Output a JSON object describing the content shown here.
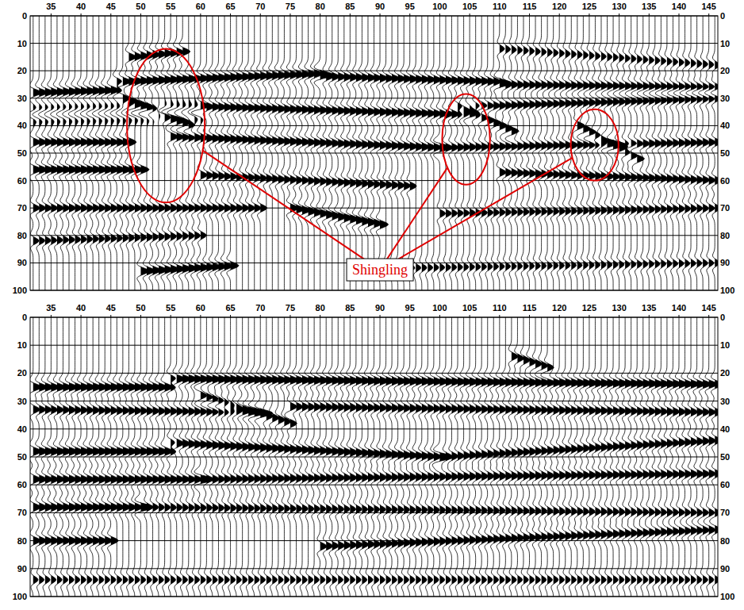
{
  "chart_data": [
    {
      "type": "wiggle",
      "color": "#000000",
      "grid": true,
      "xlim": [
        31.5,
        146.5
      ],
      "ylim": [
        0,
        100
      ],
      "xticks": [
        35,
        40,
        45,
        50,
        55,
        60,
        65,
        70,
        75,
        80,
        85,
        90,
        95,
        100,
        105,
        110,
        115,
        120,
        125,
        130,
        135,
        140,
        145
      ],
      "yticks": [
        0,
        10,
        20,
        30,
        40,
        50,
        60,
        70,
        80,
        90,
        100
      ],
      "trace_range": [
        32,
        146
      ],
      "events": [
        {
          "x": [
            31.5,
            46
          ],
          "t": [
            28,
            27
          ],
          "amplitude": 1
        },
        {
          "x": [
            46,
            80
          ],
          "t": [
            24,
            21
          ],
          "amplitude": 1
        },
        {
          "x": [
            80,
            110
          ],
          "t": [
            22,
            24
          ],
          "amplitude": 0.9
        },
        {
          "x": [
            110,
            146.5
          ],
          "t": [
            25,
            26
          ],
          "amplitude": 0.8
        },
        {
          "x": [
            31.5,
            60
          ],
          "t": [
            36,
            35
          ],
          "amplitude": -0.8
        },
        {
          "x": [
            60,
            105
          ],
          "t": [
            33,
            36
          ],
          "amplitude": 0.9
        },
        {
          "x": [
            105,
            146.5
          ],
          "t": [
            33,
            30
          ],
          "amplitude": 0.8
        },
        {
          "x": [
            31.5,
            48
          ],
          "t": [
            46,
            46
          ],
          "amplitude": 0.9
        },
        {
          "x": [
            55,
            100
          ],
          "t": [
            44,
            48
          ],
          "amplitude": 0.9
        },
        {
          "x": [
            100,
            146.5
          ],
          "t": [
            48,
            46
          ],
          "amplitude": 0.8
        },
        {
          "x": [
            31.5,
            50
          ],
          "t": [
            56,
            56
          ],
          "amplitude": 1
        },
        {
          "x": [
            60,
            95
          ],
          "t": [
            58,
            62
          ],
          "amplitude": 0.8
        },
        {
          "x": [
            110,
            146.5
          ],
          "t": [
            57,
            60
          ],
          "amplitude": 0.8
        },
        {
          "x": [
            31.5,
            70
          ],
          "t": [
            70,
            70
          ],
          "amplitude": 0.8
        },
        {
          "x": [
            75,
            90
          ],
          "t": [
            70,
            76
          ],
          "amplitude": 1
        },
        {
          "x": [
            100,
            146.5
          ],
          "t": [
            72,
            70
          ],
          "amplitude": 0.7
        },
        {
          "x": [
            31.5,
            60
          ],
          "t": [
            82,
            80
          ],
          "amplitude": 0.7
        },
        {
          "x": [
            50,
            65
          ],
          "t": [
            93,
            91
          ],
          "amplitude": 1
        },
        {
          "x": [
            90,
            146.5
          ],
          "t": [
            92,
            90
          ],
          "amplitude": 0.6
        },
        {
          "x": [
            48,
            57
          ],
          "t": [
            15,
            13
          ],
          "amplitude": 0.9
        },
        {
          "x": [
            47,
            58
          ],
          "t": [
            30,
            40
          ],
          "amplitude": 0.8
        },
        {
          "x": [
            103,
            112
          ],
          "t": [
            33,
            42
          ],
          "amplitude": 0.9
        },
        {
          "x": [
            123,
            133
          ],
          "t": [
            40,
            52
          ],
          "amplitude": 0.9
        },
        {
          "x": [
            110,
            146.5
          ],
          "t": [
            12,
            18
          ],
          "amplitude": 0.6
        }
      ],
      "annotations": [
        {
          "text": "Shingling",
          "color": "#e00000",
          "x": 90,
          "y": 92.5,
          "targets": [
            {
              "x": 54.2,
              "y": 40,
              "rx": 6.5,
              "ry": 28
            },
            {
              "x": 104.4,
              "y": 45,
              "rx": 4,
              "ry": 16.5
            },
            {
              "x": 125.9,
              "y": 47,
              "rx": 4,
              "ry": 13
            }
          ]
        }
      ]
    },
    {
      "type": "wiggle",
      "color": "#000000",
      "grid": true,
      "xlim": [
        31.5,
        146.5
      ],
      "ylim": [
        0,
        100
      ],
      "xticks": [
        35,
        40,
        45,
        50,
        55,
        60,
        65,
        70,
        75,
        80,
        85,
        90,
        95,
        100,
        105,
        110,
        115,
        120,
        125,
        130,
        135,
        140,
        145
      ],
      "yticks": [
        0,
        10,
        20,
        30,
        40,
        50,
        60,
        70,
        80,
        90,
        100
      ],
      "trace_range": [
        32,
        146
      ],
      "events": [
        {
          "x": [
            31.5,
            55
          ],
          "t": [
            25,
            25
          ],
          "amplitude": 1
        },
        {
          "x": [
            55,
            146.5
          ],
          "t": [
            22,
            24
          ],
          "amplitude": 1
        },
        {
          "x": [
            31.5,
            70
          ],
          "t": [
            33,
            34
          ],
          "amplitude": 0.8
        },
        {
          "x": [
            60,
            75
          ],
          "t": [
            28,
            38
          ],
          "amplitude": 0.8
        },
        {
          "x": [
            75,
            146.5
          ],
          "t": [
            32,
            34
          ],
          "amplitude": 0.8
        },
        {
          "x": [
            31.5,
            55
          ],
          "t": [
            48,
            48
          ],
          "amplitude": 1
        },
        {
          "x": [
            55,
            100
          ],
          "t": [
            45,
            50
          ],
          "amplitude": 0.9
        },
        {
          "x": [
            100,
            146.5
          ],
          "t": [
            50,
            44
          ],
          "amplitude": 0.8
        },
        {
          "x": [
            31.5,
            60
          ],
          "t": [
            58,
            58
          ],
          "amplitude": 0.9
        },
        {
          "x": [
            60,
            146.5
          ],
          "t": [
            58,
            56
          ],
          "amplitude": 0.8
        },
        {
          "x": [
            31.5,
            50
          ],
          "t": [
            68,
            68
          ],
          "amplitude": 0.9
        },
        {
          "x": [
            50,
            146.5
          ],
          "t": [
            68,
            70
          ],
          "amplitude": 0.7
        },
        {
          "x": [
            31.5,
            45
          ],
          "t": [
            80,
            80
          ],
          "amplitude": 0.9
        },
        {
          "x": [
            80,
            146.5
          ],
          "t": [
            82,
            76
          ],
          "amplitude": 0.8
        },
        {
          "x": [
            31.5,
            146.5
          ],
          "t": [
            94,
            94
          ],
          "amplitude": 0.6
        },
        {
          "x": [
            112,
            118
          ],
          "t": [
            14,
            18
          ],
          "amplitude": 0.8
        }
      ]
    }
  ]
}
